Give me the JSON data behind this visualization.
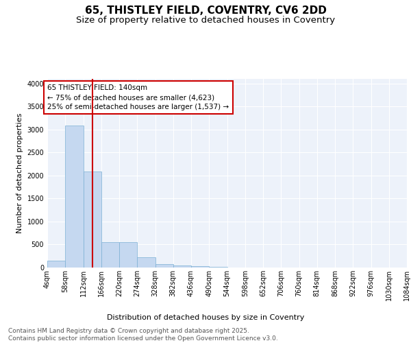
{
  "title_line1": "65, THISTLEY FIELD, COVENTRY, CV6 2DD",
  "title_line2": "Size of property relative to detached houses in Coventry",
  "xlabel": "Distribution of detached houses by size in Coventry",
  "ylabel": "Number of detached properties",
  "bar_color": "#c5d8f0",
  "bar_edge_color": "#7bafd4",
  "background_color": "#ffffff",
  "plot_bg_color": "#edf2fa",
  "grid_color": "#ffffff",
  "red_line_color": "#cc0000",
  "annotation_box_color": "#cc0000",
  "bins": [
    4,
    58,
    112,
    166,
    220,
    274,
    328,
    382,
    436,
    490,
    544,
    598,
    652,
    706,
    760,
    814,
    868,
    922,
    976,
    1030,
    1084
  ],
  "bin_labels": [
    "4sqm",
    "58sqm",
    "112sqm",
    "166sqm",
    "220sqm",
    "274sqm",
    "328sqm",
    "382sqm",
    "436sqm",
    "490sqm",
    "544sqm",
    "598sqm",
    "652sqm",
    "706sqm",
    "760sqm",
    "814sqm",
    "868sqm",
    "922sqm",
    "976sqm",
    "1030sqm",
    "1084sqm"
  ],
  "values": [
    150,
    3080,
    2080,
    555,
    555,
    230,
    75,
    50,
    30,
    20,
    0,
    0,
    0,
    0,
    0,
    0,
    0,
    0,
    0,
    0
  ],
  "red_line_x": 140,
  "annotation_text": "65 THISTLEY FIELD: 140sqm\n← 75% of detached houses are smaller (4,623)\n25% of semi-detached houses are larger (1,537) →",
  "ylim": [
    0,
    4100
  ],
  "yticks": [
    0,
    500,
    1000,
    1500,
    2000,
    2500,
    3000,
    3500,
    4000
  ],
  "footer_text": "Contains HM Land Registry data © Crown copyright and database right 2025.\nContains public sector information licensed under the Open Government Licence v3.0.",
  "title_fontsize": 11,
  "subtitle_fontsize": 9.5,
  "axis_label_fontsize": 8,
  "tick_fontsize": 7,
  "annotation_fontsize": 7.5,
  "footer_fontsize": 6.5
}
